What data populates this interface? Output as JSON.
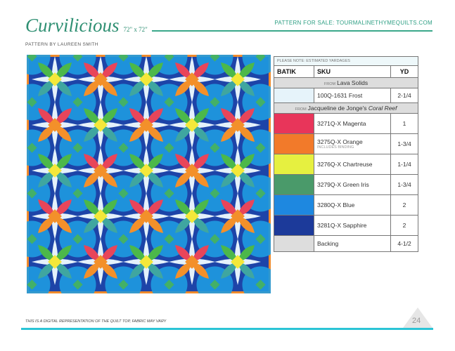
{
  "header": {
    "title": "Curvilicious",
    "size": "72\" x 72\"",
    "sale": "PATTERN FOR SALE: TOURMALINETHYMEQUILTS.COM",
    "byline": "PATTERN BY LAUREEN SMITH"
  },
  "quilt": {
    "colors": {
      "border": "#f08a2a",
      "dark_blue": "#1d44a8",
      "light_blue": "#1f9be0",
      "white": "#e4f1fb",
      "green": "#4cb84a",
      "red": "#e8455a",
      "yellow": "#f4e83a",
      "orange": "#f3902a"
    }
  },
  "table": {
    "note": "PLEASE NOTE: ESTIMATED YARDAGES",
    "headers": [
      "BATIK",
      "SKU",
      "YD"
    ],
    "group1": {
      "from": "FROM",
      "name": "Lava Solids"
    },
    "frost": {
      "sku": "100Q-1631 Frost",
      "yd": "2-1/4",
      "color": "#e6f3fa"
    },
    "group2": {
      "from": "FROM",
      "name": "Jacqueline de Jonge's",
      "italic": "Coral Reef"
    },
    "rows": [
      {
        "sku": "3271Q-X Magenta",
        "yd": "1",
        "color": "#e8355a"
      },
      {
        "sku": "3275Q-X Orange",
        "sub": "INCLUDES BINDING",
        "yd": "1-3/4",
        "color": "#f27a2a"
      },
      {
        "sku": "3276Q-X Chartreuse",
        "yd": "1-1/4",
        "color": "#e6f040"
      },
      {
        "sku": "3279Q-X Green Iris",
        "yd": "1-3/4",
        "color": "#4a9a6a"
      },
      {
        "sku": "3280Q-X Blue",
        "yd": "2",
        "color": "#1e88e0"
      },
      {
        "sku": "3281Q-X Sapphire",
        "yd": "2",
        "color": "#1c3a9a"
      }
    ],
    "backing": {
      "sku": "Backing",
      "yd": "4-1/2"
    }
  },
  "footer": {
    "disclaimer": "THIS IS A DIGITAL REPRESENTATION OF THE QUILT TOP, FABRIC MAY VARY",
    "page": "24"
  }
}
